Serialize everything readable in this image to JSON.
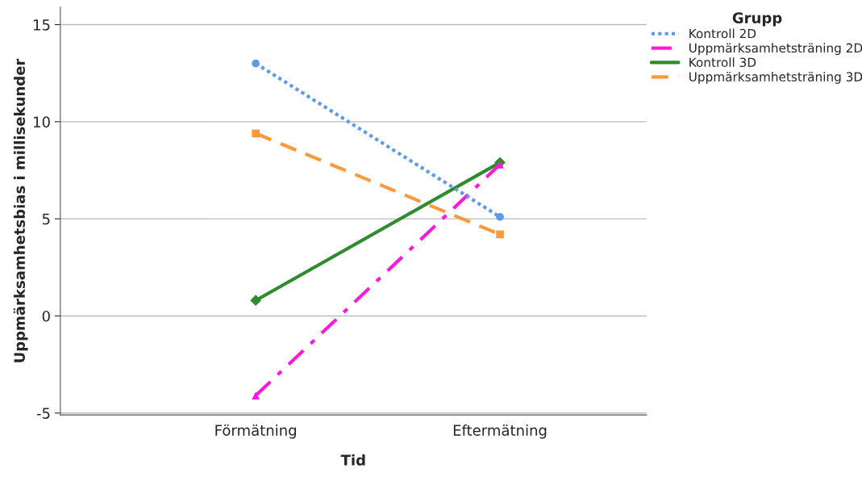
{
  "chart_data": {
    "type": "line",
    "xlabel": "Tid",
    "ylabel": "Uppmärksamhetsbias i millisekunder",
    "legend_title": "Grupp",
    "categories": [
      "Förmätning",
      "Eftermätning"
    ],
    "series": [
      {
        "name": "Kontroll 2D",
        "color": "#5b9bea",
        "values": [
          13.0,
          5.1
        ],
        "marker": "circle",
        "line_style": "dotted"
      },
      {
        "name": "Uppmärksamhetsträning 2D",
        "color": "#ff1ad9",
        "values": [
          -4.1,
          7.8
        ],
        "marker": "triangle",
        "line_style": "dashdot"
      },
      {
        "name": "Kontroll 3D",
        "color": "#2e8b2e",
        "values": [
          0.8,
          7.9
        ],
        "marker": "diamond",
        "line_style": "solid"
      },
      {
        "name": "Uppmärksamhetsträning 3D",
        "color": "#ff9a3c",
        "values": [
          9.4,
          4.2
        ],
        "marker": "square",
        "line_style": "dashed"
      }
    ],
    "ylim": [
      -5.1,
      15.9
    ],
    "yticks": [
      -5,
      0,
      5,
      10,
      15
    ],
    "grid": "y",
    "legend": "top right"
  }
}
